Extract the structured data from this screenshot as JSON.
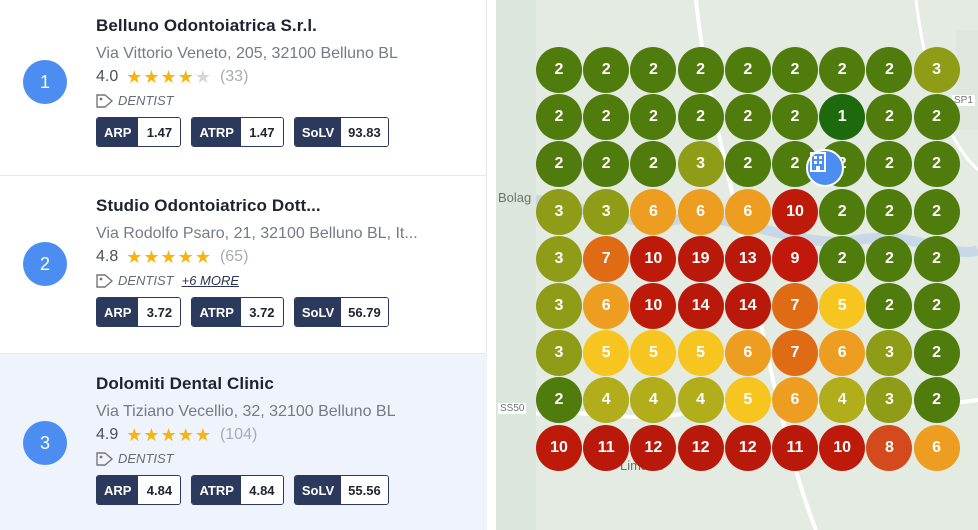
{
  "results": [
    {
      "rank": "1",
      "name": "Belluno Odontoiatrica S.r.l.",
      "address": "Via Vittorio Veneto, 205, 32100 Belluno BL",
      "rating": "4.0",
      "stars_filled": 4,
      "reviews": "(33)",
      "category": "DENTIST",
      "more": "",
      "metrics": [
        {
          "label": "ARP",
          "value": "1.47"
        },
        {
          "label": "ATRP",
          "value": "1.47"
        },
        {
          "label": "SoLV",
          "value": "93.83"
        }
      ]
    },
    {
      "rank": "2",
      "name": "Studio Odontoiatrico Dott...",
      "address": "Via Rodolfo Psaro, 21, 32100 Belluno BL, It...",
      "rating": "4.8",
      "stars_filled": 5,
      "reviews": "(65)",
      "category": "DENTIST",
      "more": "+6 MORE",
      "metrics": [
        {
          "label": "ARP",
          "value": "3.72"
        },
        {
          "label": "ATRP",
          "value": "3.72"
        },
        {
          "label": "SoLV",
          "value": "56.79"
        }
      ]
    },
    {
      "rank": "3",
      "name": "Dolomiti Dental Clinic",
      "address": "Via Tiziano Vecellio, 32, 32100 Belluno BL",
      "rating": "4.9",
      "stars_filled": 5,
      "reviews": "(104)",
      "category": "DENTIST",
      "more": "",
      "metrics": [
        {
          "label": "ARP",
          "value": "4.84"
        },
        {
          "label": "ATRP",
          "value": "4.84"
        },
        {
          "label": "SoLV",
          "value": "55.56"
        }
      ]
    }
  ],
  "map": {
    "labels": {
      "bolago": "Bolag",
      "ss50": "SS50",
      "ss50b": "SS50",
      "sp1": "SP1",
      "limana": "Limana"
    },
    "grid": [
      [
        "2",
        "2",
        "2",
        "2",
        "2",
        "2",
        "2",
        "2",
        "3"
      ],
      [
        "2",
        "2",
        "2",
        "2",
        "2",
        "2",
        "1",
        "2",
        "2"
      ],
      [
        "2",
        "2",
        "2",
        "3",
        "2",
        "2",
        "2",
        "2",
        "2"
      ],
      [
        "3",
        "3",
        "6",
        "6",
        "6",
        "10",
        "2",
        "2",
        "2"
      ],
      [
        "3",
        "7",
        "10",
        "19",
        "13",
        "9",
        "2",
        "2",
        "2"
      ],
      [
        "3",
        "6",
        "10",
        "14",
        "14",
        "7",
        "5",
        "2",
        "2"
      ],
      [
        "3",
        "5",
        "5",
        "5",
        "6",
        "7",
        "6",
        "3",
        "2"
      ],
      [
        "2",
        "4",
        "4",
        "4",
        "5",
        "6",
        "4",
        "3",
        "2"
      ],
      [
        "10",
        "11",
        "12",
        "12",
        "12",
        "11",
        "10",
        "8",
        "6"
      ]
    ],
    "rank_colors": {
      "1": "#1c6a0b",
      "2": "#4f7c0c",
      "3": "#8e9c18",
      "4": "#b2ad1b",
      "5": "#f7c520",
      "6": "#ed9d1f",
      "7": "#df6b15",
      "8": "#d34b1c",
      "9": "#c1180b",
      "10": "#bd1a0a",
      "high": "#b9190b"
    },
    "business_pin_icon": "building-icon"
  }
}
